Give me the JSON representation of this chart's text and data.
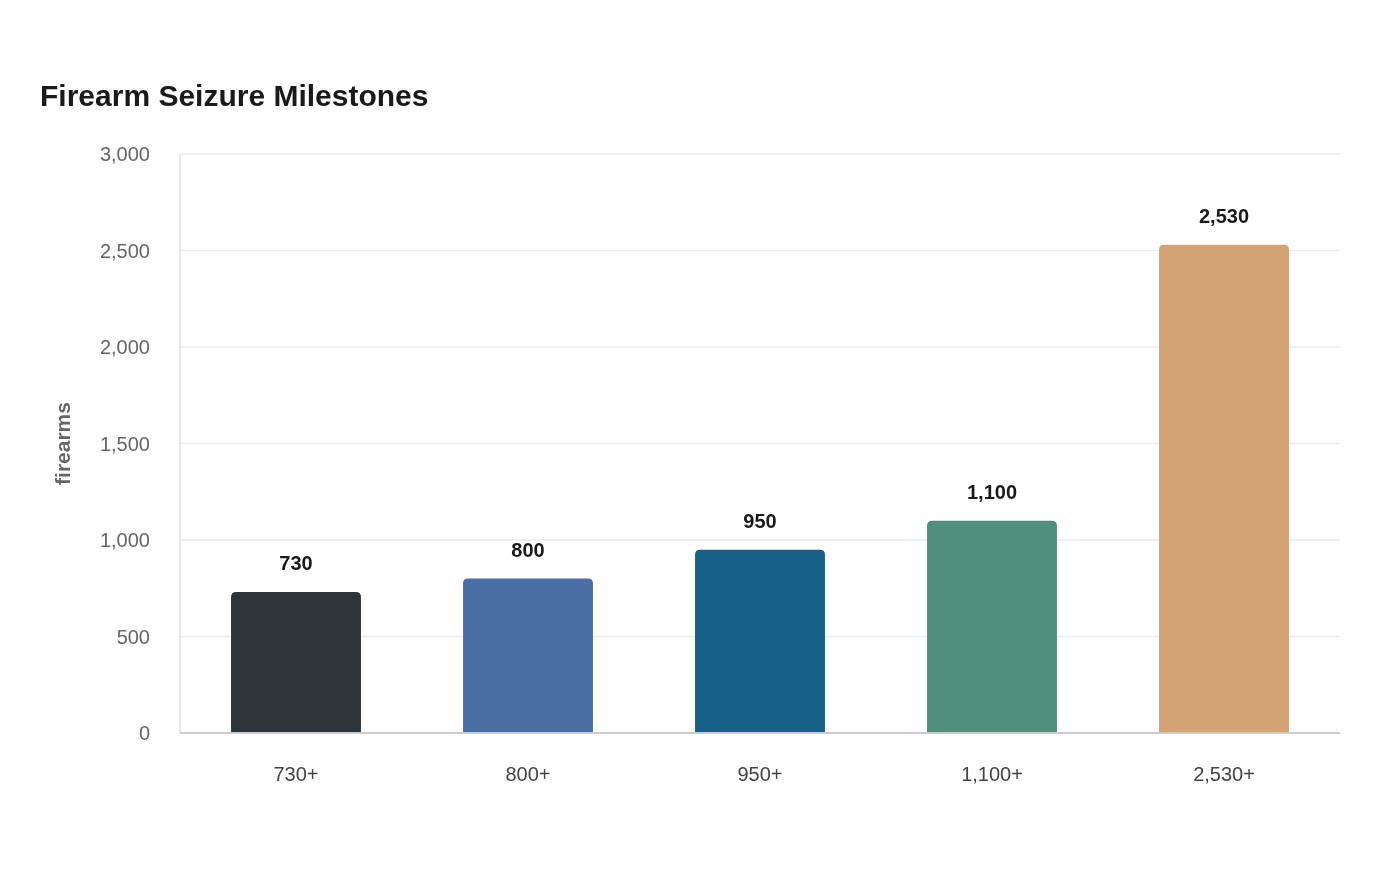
{
  "chart_data": {
    "type": "bar",
    "title": "Firearm Seizure Milestones",
    "ylabel": "firearms",
    "categories": [
      "730+",
      "800+",
      "950+",
      "1,100+",
      "2,530+"
    ],
    "values": [
      730,
      800,
      950,
      1100,
      2530
    ],
    "value_labels": [
      "730",
      "800",
      "950",
      "1,100",
      "2,530"
    ],
    "colors": [
      "#2e3538",
      "#4a6fa5",
      "#166088",
      "#4f8f7c",
      "#d4a373"
    ],
    "ylim": [
      0,
      3000
    ],
    "yticks": [
      0,
      500,
      {
        "value": 1000,
        "label": "1,000"
      },
      {
        "value": 1500,
        "label": "1,500"
      },
      {
        "value": 2000,
        "label": "2,000"
      },
      {
        "value": 2500,
        "label": "2,500"
      },
      {
        "value": 3000,
        "label": "3,000"
      }
    ],
    "grid": "y"
  }
}
